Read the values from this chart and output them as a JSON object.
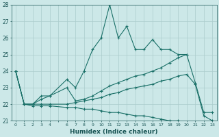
{
  "xlabel": "Humidex (Indice chaleur)",
  "xlim": [
    -0.5,
    23.5
  ],
  "ylim": [
    21,
    28
  ],
  "yticks": [
    21,
    22,
    23,
    24,
    25,
    26,
    27,
    28
  ],
  "bg_color": "#cce8e8",
  "grid_color": "#aacccc",
  "line_color": "#1a7068",
  "lines": [
    {
      "x": [
        0,
        1,
        2,
        3,
        4,
        6,
        7,
        8,
        9,
        10,
        11,
        12,
        13,
        14,
        15,
        16,
        17,
        18,
        19,
        20
      ],
      "y": [
        24,
        22,
        22,
        22.5,
        22.5,
        23.5,
        23.0,
        24.0,
        25.3,
        26.0,
        28.0,
        26.0,
        26.7,
        25.3,
        25.3,
        25.9,
        25.3,
        25.3,
        25.0,
        25.0
      ]
    },
    {
      "x": [
        0,
        1,
        2,
        3,
        4,
        6,
        7,
        8,
        9,
        10,
        11,
        12,
        13,
        14,
        15,
        16,
        17,
        18,
        19,
        20,
        21,
        22,
        23
      ],
      "y": [
        24,
        22,
        22,
        22.3,
        22.5,
        23.0,
        22.2,
        22.3,
        22.5,
        22.8,
        23.1,
        23.3,
        23.5,
        23.7,
        23.8,
        24.0,
        24.2,
        24.5,
        24.8,
        25.0,
        23.3,
        21.5,
        21.5
      ]
    },
    {
      "x": [
        0,
        1,
        2,
        3,
        4,
        6,
        7,
        8,
        9,
        10,
        11,
        12,
        13,
        14,
        15,
        16,
        17,
        18,
        19,
        20,
        21,
        22,
        23
      ],
      "y": [
        24,
        22,
        22,
        22.0,
        22.0,
        22.0,
        22.1,
        22.2,
        22.3,
        22.4,
        22.6,
        22.7,
        22.9,
        23.0,
        23.1,
        23.2,
        23.4,
        23.5,
        23.7,
        23.8,
        23.2,
        21.3,
        21.0
      ]
    },
    {
      "x": [
        0,
        1,
        2,
        3,
        4,
        6,
        7,
        8,
        9,
        10,
        11,
        12,
        13,
        14,
        15,
        16,
        17,
        18,
        19,
        20,
        21,
        22,
        23
      ],
      "y": [
        24,
        22,
        21.9,
        21.9,
        21.9,
        21.8,
        21.8,
        21.7,
        21.7,
        21.6,
        21.5,
        21.5,
        21.4,
        21.3,
        21.3,
        21.2,
        21.1,
        21.0,
        21.0,
        20.9,
        20.9,
        20.8,
        20.8
      ]
    }
  ]
}
